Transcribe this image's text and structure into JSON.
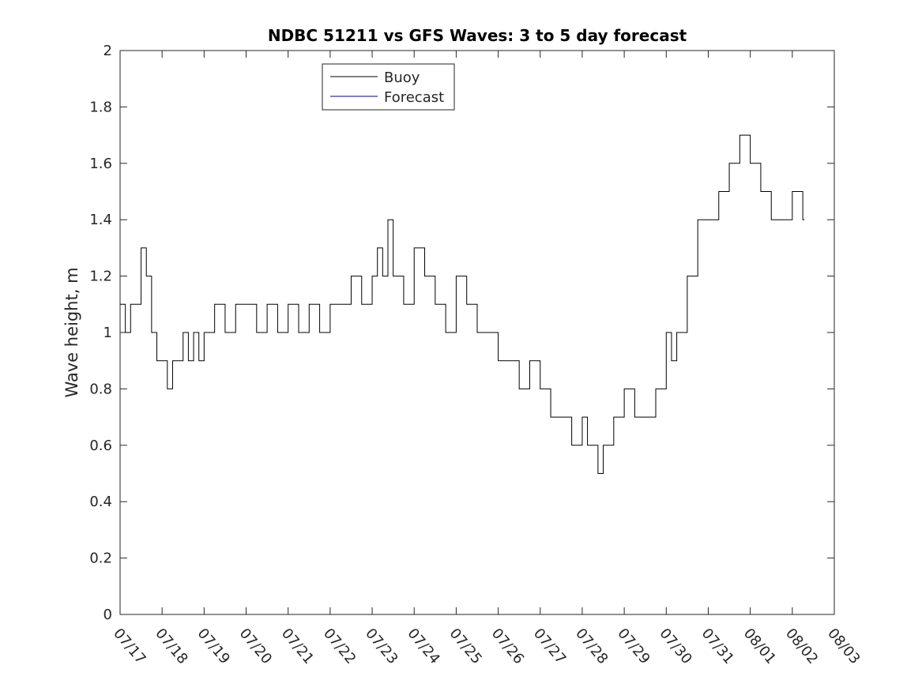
{
  "chart_data": {
    "type": "line",
    "title": "NDBC 51211 vs GFS Waves: 3 to 5 day forecast",
    "xlabel": "",
    "ylabel": "Wave height, m",
    "xlim": [
      "07/17",
      "08/03"
    ],
    "ylim": [
      0,
      2
    ],
    "x_ticks": [
      "07/17",
      "07/18",
      "07/19",
      "07/20",
      "07/21",
      "07/22",
      "07/23",
      "07/24",
      "07/25",
      "07/26",
      "07/27",
      "07/28",
      "07/29",
      "07/30",
      "07/31",
      "08/01",
      "08/02",
      "08/03"
    ],
    "y_ticks": [
      0,
      0.2,
      0.4,
      0.6,
      0.8,
      1,
      1.2,
      1.4,
      1.6,
      1.8,
      2
    ],
    "grid": false,
    "legend_position": "top-center",
    "series": [
      {
        "name": "Buoy",
        "color": "#000000",
        "x": [
          "07/17 00:00",
          "07/17 03:00",
          "07/17 06:00",
          "07/17 09:00",
          "07/17 12:00",
          "07/17 15:00",
          "07/17 18:00",
          "07/17 21:00",
          "07/18 00:00",
          "07/18 03:00",
          "07/18 06:00",
          "07/18 09:00",
          "07/18 12:00",
          "07/18 15:00",
          "07/18 18:00",
          "07/18 21:00",
          "07/19 00:00",
          "07/19 06:00",
          "07/19 12:00",
          "07/19 18:00",
          "07/20 00:00",
          "07/20 06:00",
          "07/20 12:00",
          "07/20 18:00",
          "07/21 00:00",
          "07/21 06:00",
          "07/21 12:00",
          "07/21 18:00",
          "07/22 00:00",
          "07/22 06:00",
          "07/22 12:00",
          "07/22 18:00",
          "07/23 00:00",
          "07/23 03:00",
          "07/23 06:00",
          "07/23 09:00",
          "07/23 12:00",
          "07/23 18:00",
          "07/24 00:00",
          "07/24 06:00",
          "07/24 12:00",
          "07/24 18:00",
          "07/25 00:00",
          "07/25 06:00",
          "07/25 12:00",
          "07/25 18:00",
          "07/26 00:00",
          "07/26 06:00",
          "07/26 12:00",
          "07/26 18:00",
          "07/27 00:00",
          "07/27 06:00",
          "07/27 12:00",
          "07/27 18:00",
          "07/28 00:00",
          "07/28 03:00",
          "07/28 06:00",
          "07/28 09:00",
          "07/28 12:00",
          "07/28 18:00",
          "07/29 00:00",
          "07/29 06:00",
          "07/29 12:00",
          "07/29 18:00",
          "07/30 00:00",
          "07/30 03:00",
          "07/30 06:00",
          "07/30 12:00",
          "07/30 18:00",
          "07/31 00:00",
          "07/31 06:00",
          "07/31 12:00",
          "07/31 18:00",
          "08/01 00:00",
          "08/01 06:00",
          "08/01 12:00",
          "08/01 18:00",
          "08/02 00:00",
          "08/02 06:00"
        ],
        "values": [
          1.1,
          1.0,
          1.1,
          1.1,
          1.3,
          1.2,
          1.0,
          0.9,
          0.9,
          0.8,
          0.9,
          0.9,
          1.0,
          0.9,
          1.0,
          0.9,
          1.0,
          1.1,
          1.0,
          1.1,
          1.1,
          1.0,
          1.1,
          1.0,
          1.1,
          1.0,
          1.1,
          1.0,
          1.1,
          1.1,
          1.2,
          1.1,
          1.2,
          1.3,
          1.2,
          1.4,
          1.2,
          1.1,
          1.3,
          1.2,
          1.1,
          1.0,
          1.2,
          1.1,
          1.0,
          1.0,
          0.9,
          0.9,
          0.8,
          0.9,
          0.8,
          0.7,
          0.7,
          0.6,
          0.7,
          0.6,
          0.6,
          0.5,
          0.6,
          0.7,
          0.8,
          0.7,
          0.7,
          0.8,
          1.0,
          0.9,
          1.0,
          1.2,
          1.4,
          1.4,
          1.5,
          1.6,
          1.7,
          1.6,
          1.5,
          1.4,
          1.4,
          1.5,
          1.4
        ]
      },
      {
        "name": "Forecast",
        "color": "#000080",
        "x": [],
        "values": []
      }
    ]
  }
}
